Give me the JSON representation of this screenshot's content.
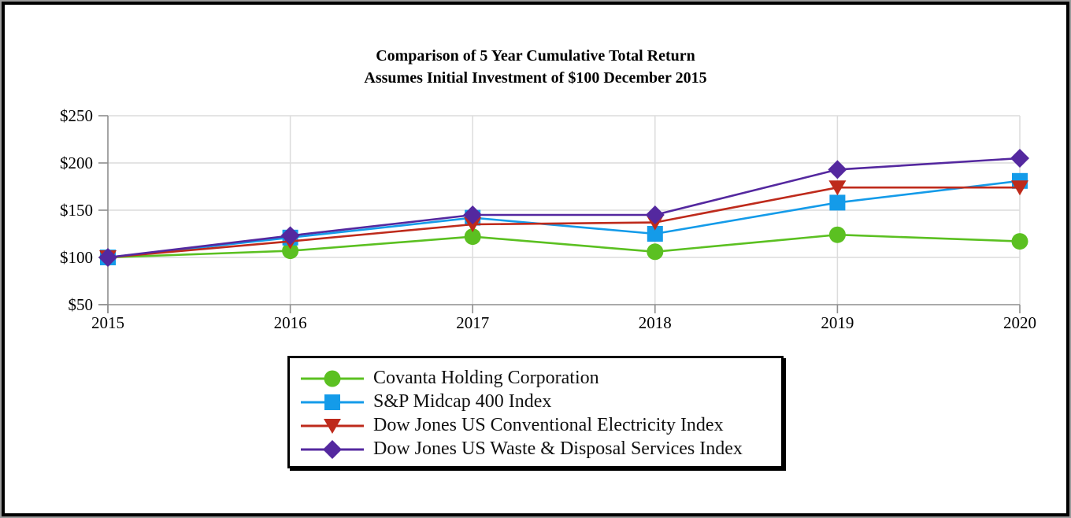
{
  "figure": {
    "background_color": "#ffffff",
    "frame_border_color": "#000000",
    "legend_border_color": "#000000"
  },
  "chart_data": {
    "type": "line",
    "title": "Comparison of 5 Year Cumulative Total Return",
    "subtitle": "Assumes Initial Investment of $100 December 2015",
    "x_tick_labels": [
      "2015",
      "2016",
      "2017",
      "2018",
      "2019",
      "2020"
    ],
    "y_ticks": [
      50,
      100,
      150,
      200,
      250
    ],
    "y_tick_labels": [
      "$50",
      "$100",
      "$150",
      "$200",
      "$250"
    ],
    "ylim": [
      50,
      250
    ],
    "grid": "horizontal-and-vertical",
    "grid_color": "#dcdcdc",
    "axis_color": "#8e8e8e",
    "legend_position": "bottom-center-boxed",
    "series": [
      {
        "name": "Covanta Holding Corporation",
        "marker": "circle",
        "color": "#5bc021",
        "values": [
          100,
          107,
          122,
          106,
          124,
          117
        ]
      },
      {
        "name": "S&P Midcap 400 Index",
        "marker": "square",
        "color": "#149be9",
        "values": [
          100,
          121,
          142,
          125,
          158,
          181
        ]
      },
      {
        "name": "Dow Jones US Conventional Electricity Index",
        "marker": "triangle-down",
        "color": "#be2a1b",
        "values": [
          100,
          117,
          135,
          137,
          174,
          174
        ]
      },
      {
        "name": "Dow Jones US Waste & Disposal Services Index",
        "marker": "diamond",
        "color": "#54289f",
        "values": [
          100,
          123,
          145,
          145,
          193,
          205
        ]
      }
    ]
  }
}
